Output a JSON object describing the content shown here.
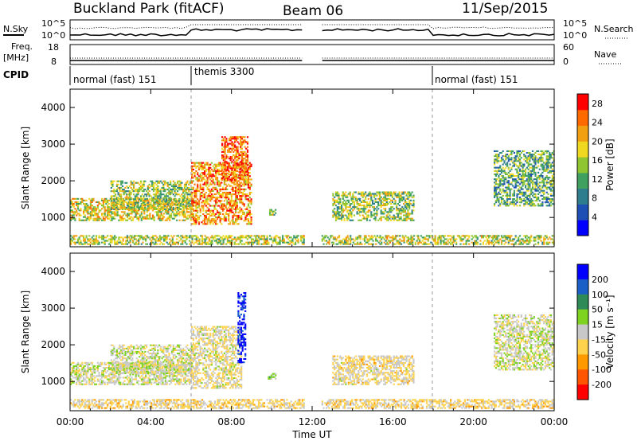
{
  "header": {
    "title": "Buckland Park (fitACF)",
    "beam": "Beam 06",
    "date": "11/Sep/2015"
  },
  "noise_panel": {
    "left_label": "N.Sky",
    "right_label": "N.Search",
    "left_ticks": [
      "10^5",
      "10^0"
    ],
    "right_ticks": [
      "10^5",
      "10^0"
    ]
  },
  "freq_panel": {
    "left_label_1": "Freq.",
    "left_label_2": "[MHz]",
    "right_label": "Nave",
    "left_ticks": [
      "18",
      "8"
    ],
    "right_ticks": [
      "60",
      "0"
    ]
  },
  "cpid": {
    "label": "CPID",
    "segments": [
      {
        "label": "normal (fast) 151",
        "start": 0,
        "end": 6
      },
      {
        "label": "themis 3300",
        "start": 6,
        "end": 18
      },
      {
        "label": "normal (fast) 151",
        "start": 18,
        "end": 24
      }
    ]
  },
  "colors": {
    "power": [
      "#0000ff",
      "#1d4fb5",
      "#2e7d8f",
      "#3fa060",
      "#8fc530",
      "#f0d820",
      "#f0a010",
      "#ff6a00",
      "#ff0000"
    ],
    "velocity": [
      "#0000ff",
      "#1a5fc8",
      "#2e8b57",
      "#7ed321",
      "#c8c8c8",
      "#ffd24d",
      "#ff9900",
      "#ff5500",
      "#ff0000"
    ]
  },
  "chart_data": [
    {
      "type": "heatmap",
      "title": "Power",
      "ylabel": "Slant Range [km]",
      "xlabel": "Time UT",
      "x_range": [
        0,
        24
      ],
      "y_range": [
        200,
        4500
      ],
      "yticks": [
        "1000",
        "2000",
        "3000",
        "4000"
      ],
      "xticks": [
        "00:00",
        "04:00",
        "08:00",
        "12:00",
        "16:00",
        "20:00",
        "00:00"
      ],
      "colorbar": {
        "label": "Power [dB]",
        "ticks": [
          "4",
          "8",
          "12",
          "16",
          "20",
          "24",
          "28"
        ],
        "range": [
          0,
          30
        ]
      },
      "data_gap": [
        11.6,
        12.4
      ],
      "features": [
        {
          "start": 0,
          "end": 6,
          "rmin": 900,
          "rmax": 1500,
          "level": 0.6
        },
        {
          "start": 2,
          "end": 6,
          "rmin": 1200,
          "rmax": 2000,
          "level": 0.5
        },
        {
          "start": 6,
          "end": 9,
          "rmin": 800,
          "rmax": 2500,
          "level": 0.75
        },
        {
          "start": 7.5,
          "end": 8.8,
          "rmin": 2000,
          "rmax": 3200,
          "level": 0.85
        },
        {
          "start": 9.8,
          "end": 10.2,
          "rmin": 1050,
          "rmax": 1200,
          "level": 0.55
        },
        {
          "start": 13,
          "end": 17,
          "rmin": 900,
          "rmax": 1700,
          "level": 0.5
        },
        {
          "start": 21,
          "end": 24,
          "rmin": 1300,
          "rmax": 2800,
          "level": 0.4
        },
        {
          "start": 0,
          "end": 24,
          "rmin": 250,
          "rmax": 500,
          "level": 0.55
        }
      ]
    },
    {
      "type": "heatmap",
      "title": "Velocity",
      "ylabel": "Slant Range [km]",
      "xlabel": "Time UT",
      "x_range": [
        0,
        24
      ],
      "y_range": [
        200,
        4500
      ],
      "yticks": [
        "1000",
        "2000",
        "3000",
        "4000"
      ],
      "xticks": [
        "00:00",
        "04:00",
        "08:00",
        "12:00",
        "16:00",
        "20:00",
        "00:00"
      ],
      "colorbar": {
        "label": "Velocity [m s⁻¹]",
        "ticks": [
          "200",
          "100",
          "50",
          "15",
          "-15",
          "-50",
          "-100",
          "-200"
        ],
        "range": [
          -250,
          250
        ]
      },
      "data_gap": [
        11.6,
        12.4
      ],
      "features": [
        {
          "start": 0,
          "end": 6,
          "rmin": 900,
          "rmax": 1500,
          "level": 0
        },
        {
          "start": 2,
          "end": 6,
          "rmin": 1200,
          "rmax": 2000,
          "level": 0
        },
        {
          "start": 6,
          "end": 8.5,
          "rmin": 800,
          "rmax": 2500,
          "level": -20
        },
        {
          "start": 8.3,
          "end": 8.7,
          "rmin": 1500,
          "rmax": 3400,
          "level": 220
        },
        {
          "start": 9.8,
          "end": 10.2,
          "rmin": 1050,
          "rmax": 1200,
          "level": 30
        },
        {
          "start": 13,
          "end": 17,
          "rmin": 900,
          "rmax": 1700,
          "level": -30
        },
        {
          "start": 21,
          "end": 24,
          "rmin": 1300,
          "rmax": 2800,
          "level": 0
        },
        {
          "start": 0,
          "end": 24,
          "rmin": 250,
          "rmax": 500,
          "level": -40
        }
      ]
    }
  ]
}
